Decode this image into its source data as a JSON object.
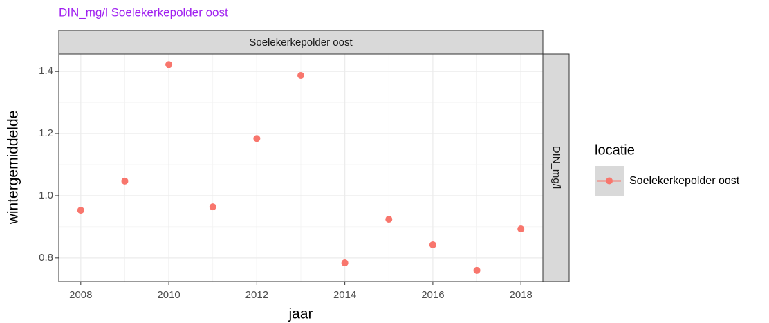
{
  "chart_data": {
    "type": "scatter",
    "title": "DIN_mg/l Soelekerkepolder oost",
    "facet_column": "Soelekerkepolder oost",
    "facet_row": "DIN_mg/l",
    "x_label": "jaar",
    "y_label": "wintergemiddelde",
    "legend_title": "locatie",
    "legend_position": "right",
    "grid": true,
    "xlim": [
      2007.5,
      2018.5
    ],
    "ylim": [
      0.724,
      1.456
    ],
    "xticks": [
      2008,
      2010,
      2012,
      2014,
      2016,
      2018
    ],
    "x_minor_ticks": [
      2009,
      2011,
      2013,
      2015,
      2017
    ],
    "yticks": [
      0.8,
      {
        "value": 1,
        "label": "1.0"
      },
      1.2,
      1.4
    ],
    "y_minor_ticks": [
      0.9,
      1.1,
      1.3
    ],
    "series": [
      {
        "name": "Soelekerkepolder oost",
        "color": "#f8766d",
        "x": [
          2008,
          2009,
          2010,
          2011,
          2012,
          2013,
          2014,
          2015,
          2016,
          2017,
          2018
        ],
        "values": [
          0.953,
          1.047,
          1.422,
          0.964,
          1.184,
          1.387,
          0.784,
          0.924,
          0.842,
          0.76,
          0.893
        ]
      }
    ]
  }
}
